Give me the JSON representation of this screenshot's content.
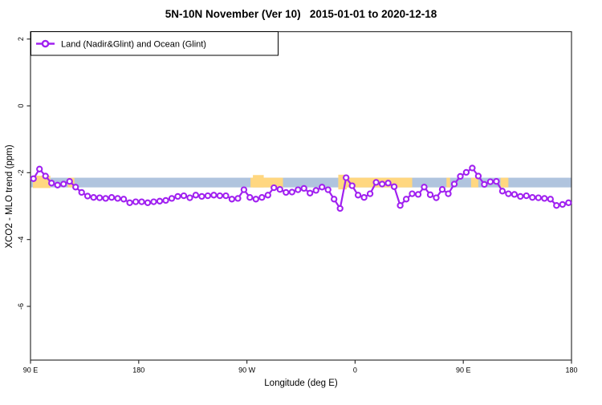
{
  "title": "5N-10N November (Ver 10)   2015-01-01 to 2020-12-18",
  "legend": {
    "label": "Land (Nadir&Glint) and Ocean (Glint)"
  },
  "axes": {
    "x_label": "Longitude (deg E)",
    "y_label": "XCO2 - MLO trend (ppm)"
  },
  "colors": {
    "series": "#A020F0",
    "ocean_band": "#B0C4DE",
    "land_band": "#FFD780",
    "axis": "#333333"
  },
  "chart_data": {
    "type": "line",
    "title": "5N-10N November (Ver 10)  2015-01-01 to 2020-12-18",
    "xlabel": "Longitude (deg E)",
    "ylabel": "XCO2 - MLO trend (ppm)",
    "grid": false,
    "legend_position": "top-left",
    "xlim_unwrapped_lon": [
      90,
      540
    ],
    "ylim": [
      -7.6,
      2.2
    ],
    "x_ticks": [
      {
        "lon": 90,
        "label": "90 E"
      },
      {
        "lon": 180,
        "label": "180"
      },
      {
        "lon": 270,
        "label": "90 W"
      },
      {
        "lon": 360,
        "label": "0"
      },
      {
        "lon": 450,
        "label": "90 E"
      },
      {
        "lon": 540,
        "label": "180"
      }
    ],
    "y_ticks": [
      {
        "value": 2,
        "label": "2"
      },
      {
        "value": 0,
        "label": "0"
      },
      {
        "value": -2,
        "label": "-2"
      },
      {
        "value": -4,
        "label": "-4"
      },
      {
        "value": -6,
        "label": "-6"
      }
    ],
    "band": {
      "description": "surface-type strip along latitude circle: ocean segments blue, land segments yellow",
      "value_top": -2.15,
      "value_bottom": -2.44,
      "ocean_from": 90,
      "ocean_to": 540,
      "land_segments": [
        {
          "from": 92,
          "to": 106.5,
          "top": -2.09,
          "bottom": -2.46
        },
        {
          "from": 121,
          "to": 126.5
        },
        {
          "from": 273,
          "to": 300
        },
        {
          "from": 275,
          "to": 284,
          "top": -2.07
        },
        {
          "from": 346,
          "to": 407.5
        },
        {
          "from": 346,
          "to": 353,
          "top": -2.06,
          "bottom": -2.5
        },
        {
          "from": 436,
          "to": 439
        },
        {
          "from": 456.5,
          "to": 462.5
        },
        {
          "from": 481,
          "to": 487.5
        }
      ]
    },
    "series": [
      {
        "name": "Land (Nadir&Glint) and Ocean (Glint)",
        "marker": "open-circle",
        "color": "#A020F0",
        "x_start_lon": 92.5,
        "x_step_deg": 5,
        "values": [
          -2.18,
          -1.89,
          -2.1,
          -2.31,
          -2.37,
          -2.34,
          -2.26,
          -2.43,
          -2.59,
          -2.7,
          -2.74,
          -2.75,
          -2.77,
          -2.74,
          -2.77,
          -2.79,
          -2.9,
          -2.87,
          -2.87,
          -2.9,
          -2.87,
          -2.85,
          -2.83,
          -2.77,
          -2.71,
          -2.69,
          -2.75,
          -2.67,
          -2.71,
          -2.69,
          -2.67,
          -2.69,
          -2.69,
          -2.79,
          -2.77,
          -2.51,
          -2.74,
          -2.79,
          -2.74,
          -2.67,
          -2.45,
          -2.5,
          -2.59,
          -2.58,
          -2.51,
          -2.47,
          -2.61,
          -2.53,
          -2.43,
          -2.51,
          -2.79,
          -3.07,
          -2.15,
          -2.39,
          -2.67,
          -2.74,
          -2.63,
          -2.29,
          -2.34,
          -2.31,
          -2.42,
          -2.98,
          -2.79,
          -2.63,
          -2.65,
          -2.43,
          -2.66,
          -2.75,
          -2.5,
          -2.63,
          -2.34,
          -2.11,
          -1.99,
          -1.86,
          -2.1,
          -2.35,
          -2.27,
          -2.26,
          -2.55,
          -2.63,
          -2.65,
          -2.71,
          -2.69,
          -2.74,
          -2.75,
          -2.77,
          -2.79,
          -2.98,
          -2.95,
          -2.9
        ]
      }
    ]
  }
}
